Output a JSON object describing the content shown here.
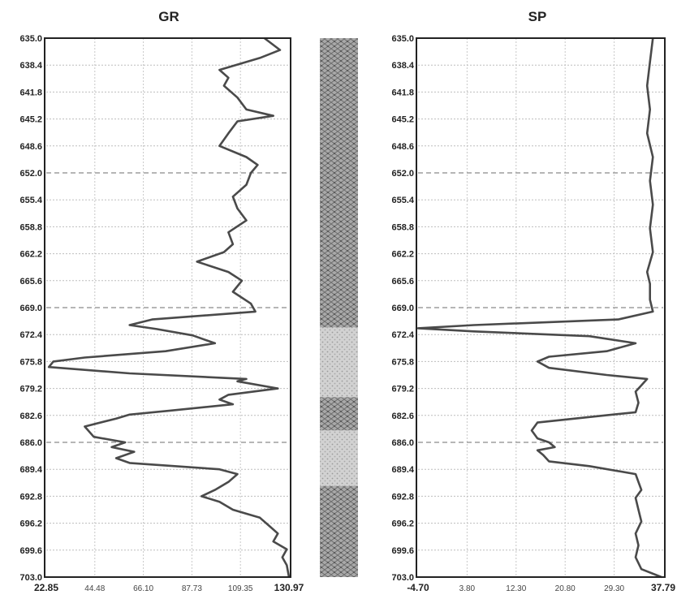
{
  "chart_data": [
    {
      "type": "line",
      "title": "GR",
      "y_axis": "depth",
      "ylim": [
        635.0,
        703.0
      ],
      "y_ticks": [
        "635.0",
        "638.4",
        "641.8",
        "645.2",
        "648.6",
        "652.0",
        "655.4",
        "658.8",
        "662.2",
        "665.6",
        "669.0",
        "672.4",
        "675.8",
        "679.2",
        "682.6",
        "686.0",
        "689.4",
        "692.8",
        "696.2",
        "699.6",
        "703.0"
      ],
      "major_depths": [
        652.0,
        669.0,
        686.0
      ],
      "xlim": [
        22.85,
        130.97
      ],
      "x_ticks": [
        "22.85",
        "44.48",
        "66.10",
        "87.73",
        "109.35",
        "130.97"
      ],
      "grid": true,
      "series": [
        {
          "depth": [
            635.0,
            636.5,
            637.5,
            639.0,
            640.0,
            641.0,
            642.5,
            644.0,
            644.8,
            645.5,
            647.0,
            648.6,
            650.0,
            651.0,
            652.0,
            653.5,
            655.0,
            656.5,
            658.0,
            659.5,
            661.0,
            662.0,
            663.2,
            664.5,
            665.6,
            667.0,
            668.5,
            669.5,
            670.5,
            671.2,
            671.7,
            672.5,
            673.5,
            674.5,
            675.3,
            675.8,
            676.5,
            677.3,
            678.0,
            678.3,
            679.2,
            680.0,
            680.6,
            681.2,
            682.0,
            682.5,
            683.0,
            684.0,
            685.3,
            686.0,
            686.6,
            687.2,
            688.0,
            688.6,
            689.4,
            690.0,
            691.0,
            692.0,
            692.8,
            693.5,
            694.5,
            695.5,
            696.5,
            697.5,
            698.5,
            699.5,
            700.5,
            701.5,
            703.0
          ],
          "values": [
            120,
            127,
            118,
            100,
            104,
            102,
            108,
            112,
            124,
            108,
            104,
            100,
            112,
            117,
            114,
            112,
            106,
            108,
            112,
            104,
            106,
            102,
            90,
            104,
            110,
            106,
            114,
            116,
            70,
            60,
            72,
            88,
            98,
            76,
            40,
            26,
            24,
            60,
            112,
            108,
            126,
            104,
            100,
            106,
            78,
            60,
            54,
            40,
            44,
            58,
            52,
            62,
            54,
            60,
            100,
            108,
            104,
            98,
            92,
            100,
            106,
            118,
            122,
            126,
            124,
            130,
            128,
            130,
            131
          ]
        }
      ]
    },
    {
      "type": "line",
      "title": "SP",
      "y_axis": "depth",
      "ylim": [
        635.0,
        703.0
      ],
      "y_ticks": [
        "635.0",
        "638.4",
        "641.8",
        "645.2",
        "648.6",
        "652.0",
        "655.4",
        "658.8",
        "662.2",
        "665.6",
        "669.0",
        "672.4",
        "675.8",
        "679.2",
        "682.6",
        "686.0",
        "689.4",
        "692.8",
        "696.2",
        "699.6",
        "703.0"
      ],
      "major_depths": [
        652.0,
        669.0,
        686.0
      ],
      "xlim": [
        -4.7,
        37.79
      ],
      "x_ticks": [
        "-4.70",
        "3.80",
        "12.30",
        "20.80",
        "29.30",
        "37.79"
      ],
      "grid": true,
      "series": [
        {
          "depth": [
            635.0,
            638.0,
            641.0,
            644.0,
            647.0,
            650.0,
            653.0,
            656.0,
            659.0,
            662.0,
            664.5,
            666.0,
            668.0,
            669.5,
            670.5,
            671.2,
            671.6,
            672.0,
            672.6,
            673.5,
            674.5,
            675.2,
            675.8,
            676.6,
            677.5,
            678.0,
            678.8,
            679.6,
            681.0,
            682.2,
            682.8,
            683.5,
            684.5,
            685.5,
            686.0,
            686.6,
            687.0,
            687.6,
            688.4,
            689.0,
            690.0,
            691.0,
            692.0,
            693.0,
            694.5,
            696.0,
            697.5,
            699.0,
            700.5,
            702.0,
            703.0
          ],
          "values": [
            36,
            35.5,
            35,
            35.5,
            35,
            36,
            35.5,
            36,
            35.5,
            36,
            35,
            35.5,
            35.5,
            36,
            30,
            5,
            -4.7,
            5,
            25,
            33,
            28,
            18,
            16,
            18,
            28,
            35,
            34,
            33,
            33.5,
            33,
            25,
            16,
            15,
            16,
            18,
            19,
            16,
            17,
            18,
            25,
            33,
            33.5,
            34,
            33,
            33.5,
            34,
            33,
            33.5,
            33,
            34,
            37.5
          ]
        }
      ]
    }
  ],
  "lithology": {
    "intervals": [
      {
        "top": 635.0,
        "bottom": 671.5,
        "rock": "shale"
      },
      {
        "top": 671.5,
        "bottom": 680.3,
        "rock": "sand"
      },
      {
        "top": 680.3,
        "bottom": 684.5,
        "rock": "shale"
      },
      {
        "top": 684.5,
        "bottom": 691.5,
        "rock": "sand"
      },
      {
        "top": 691.5,
        "bottom": 703.0,
        "rock": "shale"
      }
    ],
    "colors": {
      "shale": "#8f8f8f",
      "sand": "#c6c6c6",
      "frame": "#222222",
      "curve": "#4a4a4a"
    }
  }
}
